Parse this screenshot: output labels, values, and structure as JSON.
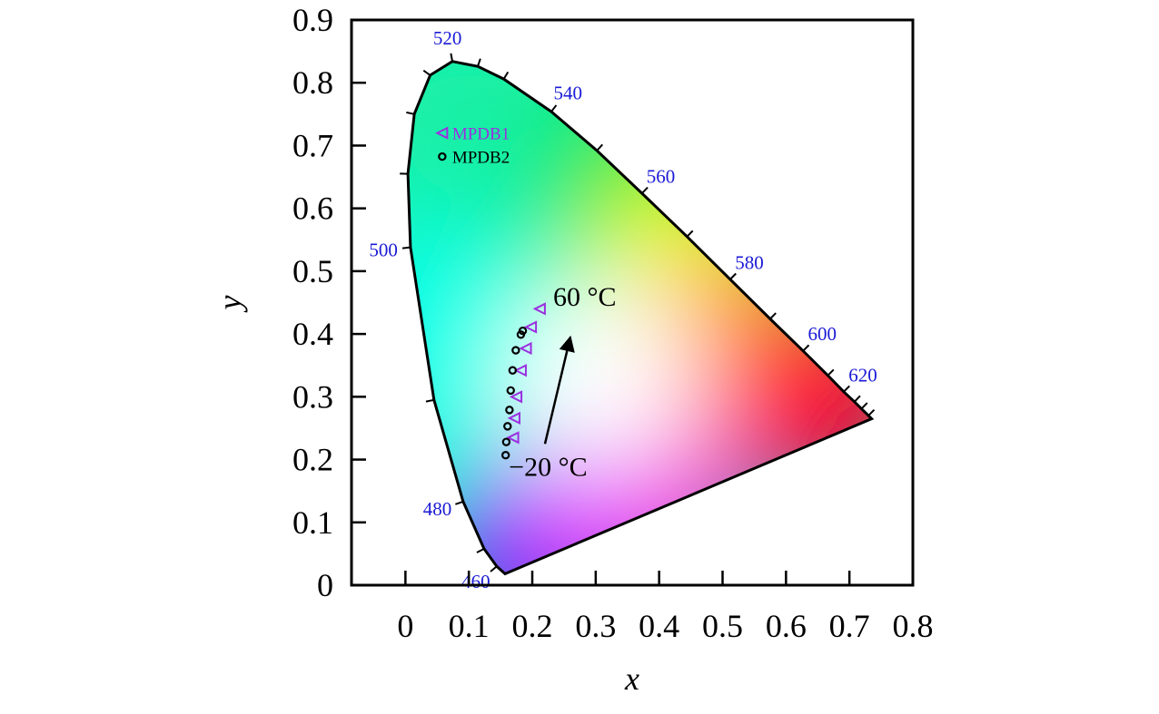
{
  "chart_data": {
    "type": "scatter",
    "title": "",
    "xlabel": "x",
    "ylabel": "y",
    "xlim": [
      -0.085,
      0.8
    ],
    "ylim": [
      0,
      0.9
    ],
    "x_ticks": [
      0,
      0.1,
      0.2,
      0.3,
      0.4,
      0.5,
      0.6,
      0.7,
      0.8
    ],
    "x_tick_labels": [
      "0",
      "0.1",
      "0.2",
      "0.3",
      "0.4",
      "0.5",
      "0.6",
      "0.7",
      "0.8"
    ],
    "y_ticks": [
      0,
      0.1,
      0.2,
      0.3,
      0.4,
      0.5,
      0.6,
      0.7,
      0.8,
      0.9
    ],
    "y_tick_labels": [
      "0",
      "0.1",
      "0.2",
      "0.3",
      "0.4",
      "0.5",
      "0.6",
      "0.7",
      "0.8",
      "0.9"
    ],
    "grid": false,
    "legend_position": "top-left",
    "background": "CIE 1931 chromaticity diagram",
    "spectral_locus": [
      {
        "nm": 450,
        "x": 0.157,
        "y": 0.018
      },
      {
        "nm": 460,
        "x": 0.144,
        "y": 0.03
      },
      {
        "nm": 470,
        "x": 0.124,
        "y": 0.058
      },
      {
        "nm": 480,
        "x": 0.091,
        "y": 0.133
      },
      {
        "nm": 490,
        "x": 0.045,
        "y": 0.295
      },
      {
        "nm": 500,
        "x": 0.008,
        "y": 0.538
      },
      {
        "nm": 505,
        "x": 0.004,
        "y": 0.655
      },
      {
        "nm": 510,
        "x": 0.014,
        "y": 0.75
      },
      {
        "nm": 515,
        "x": 0.039,
        "y": 0.812
      },
      {
        "nm": 520,
        "x": 0.074,
        "y": 0.834
      },
      {
        "nm": 525,
        "x": 0.114,
        "y": 0.826
      },
      {
        "nm": 530,
        "x": 0.155,
        "y": 0.806
      },
      {
        "nm": 540,
        "x": 0.23,
        "y": 0.754
      },
      {
        "nm": 550,
        "x": 0.302,
        "y": 0.692
      },
      {
        "nm": 560,
        "x": 0.373,
        "y": 0.624
      },
      {
        "nm": 570,
        "x": 0.444,
        "y": 0.555
      },
      {
        "nm": 580,
        "x": 0.512,
        "y": 0.487
      },
      {
        "nm": 590,
        "x": 0.575,
        "y": 0.424
      },
      {
        "nm": 600,
        "x": 0.627,
        "y": 0.373
      },
      {
        "nm": 610,
        "x": 0.666,
        "y": 0.334
      },
      {
        "nm": 620,
        "x": 0.691,
        "y": 0.308
      },
      {
        "nm": 630,
        "x": 0.708,
        "y": 0.292
      },
      {
        "nm": 640,
        "x": 0.719,
        "y": 0.281
      },
      {
        "nm": 660,
        "x": 0.73,
        "y": 0.27
      },
      {
        "nm": 700,
        "x": 0.735,
        "y": 0.265
      }
    ],
    "wavelength_labels": [
      {
        "text": "460",
        "nm": 460
      },
      {
        "text": "480",
        "nm": 480
      },
      {
        "text": "500",
        "nm": 500
      },
      {
        "text": "520",
        "nm": 520
      },
      {
        "text": "540",
        "nm": 540
      },
      {
        "text": "560",
        "nm": 560
      },
      {
        "text": "580",
        "nm": 580
      },
      {
        "text": "600",
        "nm": 600
      },
      {
        "text": "620",
        "nm": 620
      }
    ],
    "series": [
      {
        "name": "MPDB1",
        "marker": "triangle-left",
        "color": "#9b2fe0",
        "points": [
          {
            "x": 0.17,
            "y": 0.235
          },
          {
            "x": 0.172,
            "y": 0.266
          },
          {
            "x": 0.175,
            "y": 0.3
          },
          {
            "x": 0.182,
            "y": 0.342
          },
          {
            "x": 0.19,
            "y": 0.377
          },
          {
            "x": 0.198,
            "y": 0.411
          },
          {
            "x": 0.212,
            "y": 0.44
          }
        ]
      },
      {
        "name": "MPDB2",
        "marker": "circle",
        "color": "#000000",
        "points": [
          {
            "x": 0.158,
            "y": 0.207
          },
          {
            "x": 0.159,
            "y": 0.228
          },
          {
            "x": 0.161,
            "y": 0.253
          },
          {
            "x": 0.164,
            "y": 0.279
          },
          {
            "x": 0.166,
            "y": 0.31
          },
          {
            "x": 0.169,
            "y": 0.342
          },
          {
            "x": 0.174,
            "y": 0.374
          },
          {
            "x": 0.182,
            "y": 0.399
          },
          {
            "x": 0.185,
            "y": 0.405
          }
        ]
      }
    ],
    "annotations": [
      {
        "text": "60 °C",
        "x": 0.233,
        "y": 0.445
      },
      {
        "text": "−20 °C",
        "x": 0.163,
        "y": 0.174
      }
    ],
    "arrow": {
      "x1": 0.22,
      "y1": 0.225,
      "x2": 0.26,
      "y2": 0.395
    }
  }
}
